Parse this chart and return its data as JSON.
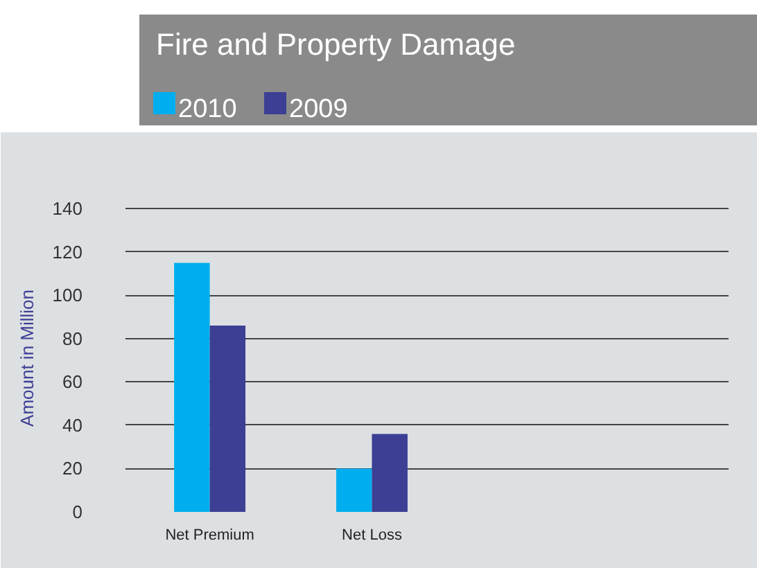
{
  "chart_data": {
    "type": "bar",
    "title": "Fire and Property Damage",
    "ylabel": "Amount in Million",
    "categories": [
      "Net Premium",
      "Net Loss",
      null,
      null
    ],
    "series": [
      {
        "name": "2010",
        "color": "#00aeef",
        "values": [
          115,
          20,
          null,
          null
        ]
      },
      {
        "name": "2009",
        "color": "#3c3f94",
        "values": [
          86,
          36,
          null,
          null
        ]
      }
    ],
    "ylim": [
      0,
      142
    ],
    "yticks": [
      0,
      20,
      40,
      60,
      80,
      100,
      120,
      140
    ],
    "grid": "y",
    "legend": "top"
  }
}
